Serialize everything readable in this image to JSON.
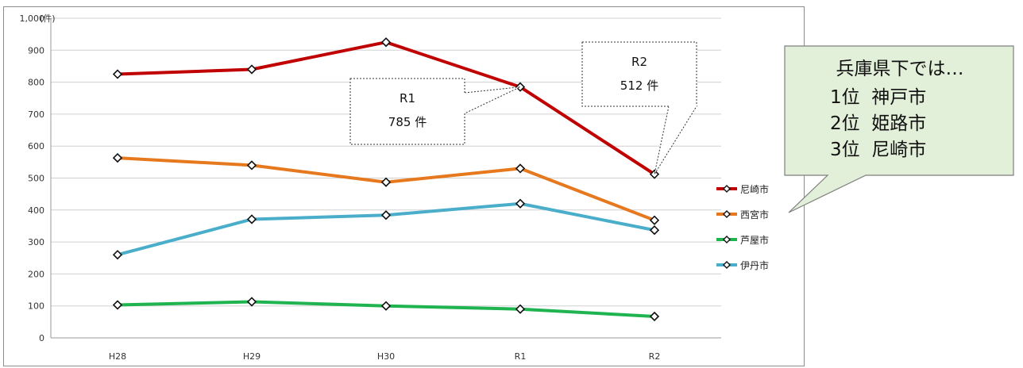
{
  "chart_data": {
    "type": "line",
    "categories": [
      "H28",
      "H29",
      "H30",
      "R1",
      "R2"
    ],
    "ylim": [
      0,
      1000
    ],
    "y_ticks": [
      0,
      100,
      200,
      300,
      400,
      500,
      600,
      700,
      800,
      900,
      1000
    ],
    "y_tick_labels": [
      "0",
      "100",
      "200",
      "300",
      "400",
      "500",
      "600",
      "700",
      "800",
      "900",
      "1,000"
    ],
    "y_unit": "(件)",
    "grid": true,
    "legend_position": "right",
    "series": [
      {
        "name": "尼崎市",
        "color": "#c00000",
        "values": [
          825,
          840,
          925,
          785,
          512
        ]
      },
      {
        "name": "西宮市",
        "color": "#e6781e",
        "values": [
          563,
          540,
          487,
          530,
          368
        ]
      },
      {
        "name": "芦屋市",
        "color": "#1fb450",
        "values": [
          103,
          113,
          100,
          90,
          67
        ]
      },
      {
        "name": "伊丹市",
        "color": "#4aaecb",
        "values": [
          260,
          371,
          384,
          420,
          337
        ]
      }
    ],
    "annotations": [
      {
        "lines": [
          "R1",
          "785 件"
        ],
        "category": "R1",
        "series": "尼崎市"
      },
      {
        "lines": [
          "R2",
          "512 件"
        ],
        "category": "R2",
        "series": "尼崎市"
      }
    ],
    "info_box": {
      "title": "兵庫県下では…",
      "items": [
        "1位  神戸市",
        "2位  姫路市",
        "3位  尼崎市"
      ],
      "fill": "#e2efd9",
      "border": "#7f7f7f"
    }
  }
}
